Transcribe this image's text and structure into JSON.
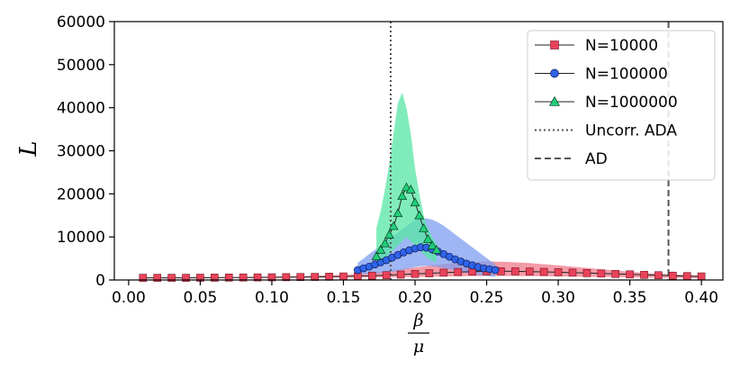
{
  "chart_data": {
    "type": "line",
    "title": "",
    "ylabel": "L",
    "xlabel": {
      "numerator": "β",
      "denominator": "μ"
    },
    "xlim": [
      -0.01,
      0.415
    ],
    "ylim": [
      0,
      60000
    ],
    "x_ticks": [
      "0.00",
      "0.05",
      "0.10",
      "0.15",
      "0.20",
      "0.25",
      "0.30",
      "0.35",
      "0.40"
    ],
    "x_tick_values": [
      0.0,
      0.05,
      0.1,
      0.15,
      0.2,
      0.25,
      0.3,
      0.35,
      0.4
    ],
    "y_ticks": [
      "0",
      "10000",
      "20000",
      "30000",
      "40000",
      "50000",
      "60000"
    ],
    "y_tick_values": [
      0,
      10000,
      20000,
      30000,
      40000,
      50000,
      60000
    ],
    "grid": false,
    "legend_position": "top-right",
    "series": [
      {
        "name": "N=10000",
        "color": "#e8435a",
        "band_color": "#ef7a8a",
        "marker": "square",
        "x": [
          0.01,
          0.02,
          0.03,
          0.04,
          0.05,
          0.06,
          0.07,
          0.08,
          0.09,
          0.1,
          0.11,
          0.12,
          0.13,
          0.14,
          0.15,
          0.16,
          0.17,
          0.18,
          0.19,
          0.2,
          0.21,
          0.22,
          0.23,
          0.24,
          0.25,
          0.26,
          0.27,
          0.28,
          0.29,
          0.3,
          0.31,
          0.32,
          0.33,
          0.34,
          0.35,
          0.36,
          0.37,
          0.38,
          0.39,
          0.4
        ],
        "values": [
          500,
          500,
          500,
          500,
          520,
          540,
          560,
          580,
          600,
          620,
          650,
          680,
          720,
          760,
          820,
          900,
          1000,
          1100,
          1250,
          1400,
          1550,
          1700,
          1850,
          1950,
          2000,
          2020,
          2000,
          1950,
          1880,
          1800,
          1700,
          1600,
          1500,
          1400,
          1300,
          1200,
          1100,
          1000,
          900,
          820
        ],
        "band_upper": [
          600,
          600,
          610,
          620,
          640,
          660,
          690,
          720,
          760,
          800,
          850,
          900,
          980,
          1080,
          1200,
          1400,
          1700,
          2100,
          2500,
          2900,
          3300,
          3700,
          4000,
          4200,
          4300,
          4250,
          4100,
          3900,
          3650,
          3400,
          3100,
          2800,
          2500,
          2200,
          1900,
          1650,
          1450,
          1300,
          1150,
          1050
        ],
        "band_lower": [
          400,
          400,
          400,
          400,
          410,
          420,
          430,
          440,
          450,
          460,
          480,
          500,
          520,
          540,
          560,
          580,
          600,
          620,
          650,
          700,
          750,
          800,
          850,
          900,
          920,
          930,
          920,
          900,
          860,
          820,
          780,
          740,
          700,
          660,
          620,
          580,
          540,
          500,
          460,
          420
        ]
      },
      {
        "name": "N=100000",
        "color": "#2f63e8",
        "band_color": "#7f9df0",
        "marker": "circle",
        "x": [
          0.16,
          0.164,
          0.168,
          0.172,
          0.176,
          0.18,
          0.184,
          0.188,
          0.192,
          0.196,
          0.2,
          0.204,
          0.208,
          0.212,
          0.216,
          0.22,
          0.224,
          0.228,
          0.232,
          0.236,
          0.24,
          0.244,
          0.248,
          0.252,
          0.256
        ],
        "values": [
          2300,
          2700,
          3100,
          3600,
          4100,
          4600,
          5200,
          5800,
          6400,
          6900,
          7300,
          7600,
          7500,
          7100,
          6600,
          6000,
          5400,
          4800,
          4300,
          3800,
          3400,
          3000,
          2700,
          2500,
          2300
        ],
        "band_upper": [
          4000,
          5000,
          6000,
          7000,
          8000,
          9000,
          10000,
          11000,
          12000,
          13000,
          13800,
          14200,
          14300,
          14000,
          13400,
          12600,
          11600,
          10600,
          9600,
          8600,
          7600,
          6600,
          5600,
          4600,
          3700
        ],
        "band_lower": [
          1200,
          1300,
          1400,
          1500,
          1600,
          1700,
          1900,
          2100,
          2400,
          2700,
          3000,
          3200,
          3300,
          3200,
          3000,
          2800,
          2500,
          2200,
          1900,
          1600,
          1400,
          1200,
          1000,
          900,
          800
        ]
      },
      {
        "name": "N=1000000",
        "color": "#1fcf7a",
        "band_color": "#57e6a4",
        "marker": "triangle",
        "x": [
          0.173,
          0.176,
          0.179,
          0.182,
          0.185,
          0.188,
          0.191,
          0.194,
          0.197,
          0.2,
          0.203,
          0.206,
          0.209,
          0.212,
          0.215
        ],
        "values": [
          5500,
          7000,
          8500,
          10500,
          12500,
          15500,
          19500,
          21500,
          21000,
          18000,
          15000,
          12000,
          9500,
          8000,
          7000
        ],
        "band_upper": [
          12000,
          16000,
          21000,
          27000,
          34000,
          41000,
          43500,
          40000,
          34000,
          26000,
          20000,
          15000,
          12000,
          10000,
          8500
        ],
        "band_lower": [
          3000,
          4000,
          5000,
          6000,
          7000,
          8000,
          9000,
          10000,
          9000,
          8000,
          7000,
          6000,
          5000,
          4500,
          4000
        ]
      }
    ],
    "reference_lines": [
      {
        "name": "Uncorr. ADA",
        "x": 0.183,
        "style": "dotted",
        "color": "#555555"
      },
      {
        "name": "AD",
        "x": 0.377,
        "style": "dashed",
        "color": "#555555"
      }
    ]
  }
}
